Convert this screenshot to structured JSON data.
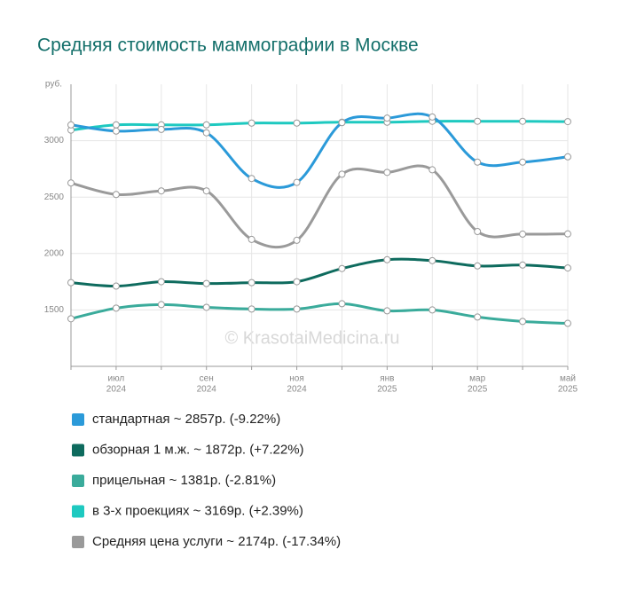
{
  "chart_data": {
    "type": "line",
    "title": "Средняя стоимость маммографии в Москве",
    "y_label": "руб.",
    "watermark": "© KrasotaiMedicina.ru",
    "categories": [
      null,
      "июл",
      null,
      "сен",
      null,
      "ноя",
      null,
      "янв",
      null,
      "мар",
      null,
      "май"
    ],
    "category_years": [
      null,
      "2024",
      null,
      "2024",
      null,
      "2024",
      null,
      "2025",
      null,
      "2025",
      null,
      "2025"
    ],
    "ylim": [
      1000,
      3500
    ],
    "yticks": [
      1500,
      2000,
      2500,
      3000
    ],
    "grid": true,
    "series": [
      {
        "name": "стандартная ~ 2857р. (-9.22%)",
        "color": "#2b9ad9",
        "values": [
          3140,
          3085,
          3100,
          3070,
          2665,
          2630,
          3160,
          3200,
          3210,
          2810,
          2810,
          2857
        ]
      },
      {
        "name": "обзорная 1 м.ж. ~ 1872р. (+7.22%)",
        "color": "#0e6b5e",
        "values": [
          1742,
          1711,
          1750,
          1734,
          1742,
          1750,
          1867,
          1945,
          1937,
          1890,
          1898,
          1872
        ]
      },
      {
        "name": "прицельная ~ 1381р. (-2.81%)",
        "color": "#3aab9b",
        "values": [
          1422,
          1516,
          1547,
          1523,
          1508,
          1508,
          1555,
          1492,
          1500,
          1437,
          1398,
          1381
        ]
      },
      {
        "name": "в 3-х проекциях ~ 3169р. (+2.39%)",
        "color": "#1ec9c0",
        "values": [
          3094,
          3140,
          3140,
          3140,
          3156,
          3156,
          3164,
          3164,
          3172,
          3172,
          3172,
          3169
        ]
      },
      {
        "name": "Средняя цена услуги ~ 2174р. (-17.34%)",
        "color": "#9a9a9a",
        "values": [
          2625,
          2523,
          2555,
          2555,
          2125,
          2117,
          2703,
          2719,
          2742,
          2195,
          2172,
          2174
        ]
      }
    ]
  }
}
